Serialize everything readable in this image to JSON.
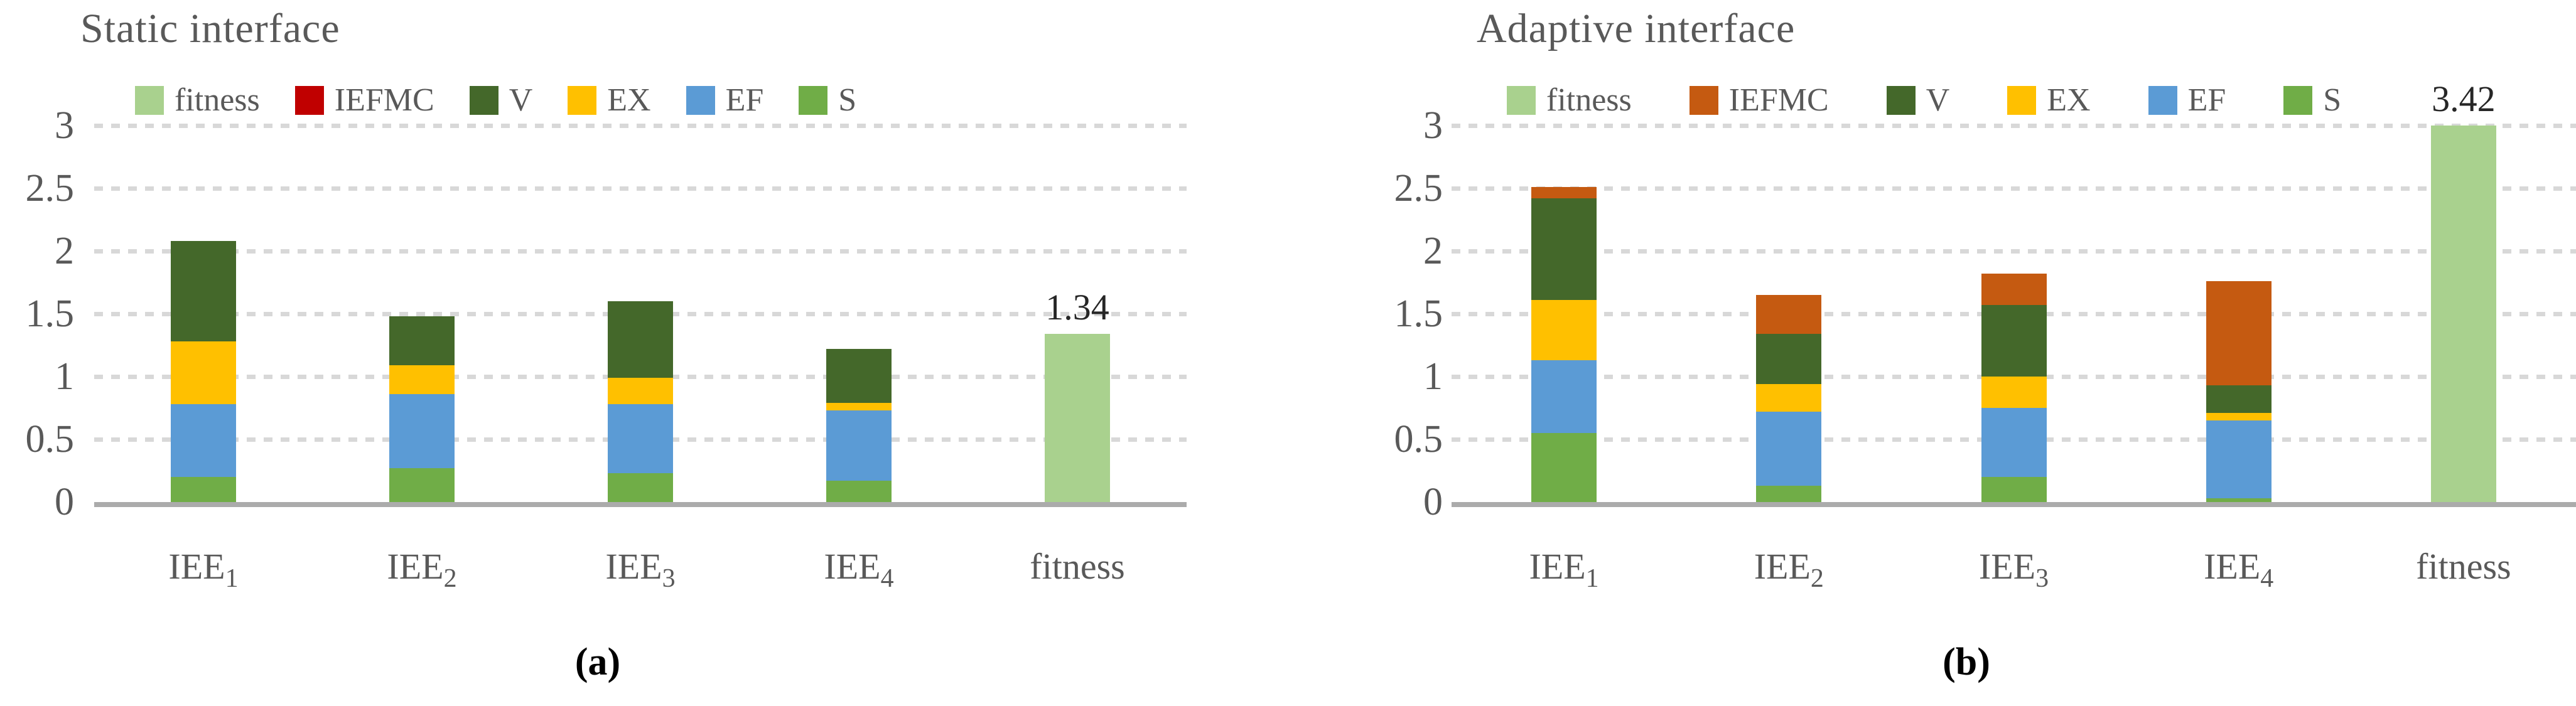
{
  "figure": {
    "background": "#FFFFFF",
    "text_color": "#595959",
    "axis_color": "#ABABAB",
    "grid_color": "#D8D8D8",
    "annotation_color": "#262626",
    "caption_color": "#000000"
  },
  "chart_data": [
    {
      "type": "bar",
      "subtype": "stacked",
      "title": "Static interface",
      "caption": "(a)",
      "legend_position": "top",
      "legend": [
        {
          "label": "fitness",
          "color": "#A9D18E"
        },
        {
          "label": "IEFMC",
          "color": "#C00000"
        },
        {
          "label": "V",
          "color": "#44682A"
        },
        {
          "label": "EX",
          "color": "#FFC000"
        },
        {
          "label": "EF",
          "color": "#5B9BD5"
        },
        {
          "label": "S",
          "color": "#70AD47"
        }
      ],
      "categories": [
        "IEE1",
        "IEE2",
        "IEE3",
        "IEE4",
        "fitness"
      ],
      "category_labels": [
        {
          "base": "IEE",
          "sub": "1"
        },
        {
          "base": "IEE",
          "sub": "2"
        },
        {
          "base": "IEE",
          "sub": "3"
        },
        {
          "base": "IEE",
          "sub": "4"
        },
        {
          "base": "fitness",
          "sub": ""
        }
      ],
      "series": [
        {
          "name": "S",
          "color": "#70AD47",
          "values": [
            0.2,
            0.27,
            0.23,
            0.17,
            0
          ]
        },
        {
          "name": "EF",
          "color": "#5B9BD5",
          "values": [
            0.58,
            0.59,
            0.55,
            0.56,
            0
          ]
        },
        {
          "name": "EX",
          "color": "#FFC000",
          "values": [
            0.5,
            0.23,
            0.21,
            0.06,
            0
          ]
        },
        {
          "name": "V",
          "color": "#44682A",
          "values": [
            0.8,
            0.39,
            0.61,
            0.43,
            0
          ]
        },
        {
          "name": "IEFMC",
          "color": "#C00000",
          "values": [
            0,
            0,
            0,
            0,
            0
          ]
        },
        {
          "name": "fitness",
          "color": "#A9D18E",
          "values": [
            0,
            0,
            0,
            0,
            1.34
          ]
        }
      ],
      "annotations": [
        {
          "category": "fitness",
          "category_index": 4,
          "text": "1.34",
          "value": 1.34
        }
      ],
      "ylim": [
        0,
        3
      ],
      "yticks": [
        3,
        2.5,
        2,
        1.5,
        1,
        0.5,
        0
      ],
      "ytick_labels": [
        "3",
        "2.5",
        "2",
        "1.5",
        "1",
        "0.5",
        "0"
      ],
      "grid": "dashed-horizontal"
    },
    {
      "type": "bar",
      "subtype": "stacked",
      "title": "Adaptive interface",
      "caption": "(b)",
      "legend_position": "top",
      "legend": [
        {
          "label": "fitness",
          "color": "#A9D18E"
        },
        {
          "label": "IEFMC",
          "color": "#C55A11"
        },
        {
          "label": "V",
          "color": "#44682A"
        },
        {
          "label": "EX",
          "color": "#FFC000"
        },
        {
          "label": "EF",
          "color": "#5B9BD5"
        },
        {
          "label": "S",
          "color": "#70AD47"
        }
      ],
      "categories": [
        "IEE1",
        "IEE2",
        "IEE3",
        "IEE4",
        "fitness"
      ],
      "category_labels": [
        {
          "base": "IEE",
          "sub": "1"
        },
        {
          "base": "IEE",
          "sub": "2"
        },
        {
          "base": "IEE",
          "sub": "3"
        },
        {
          "base": "IEE",
          "sub": "4"
        },
        {
          "base": "fitness",
          "sub": ""
        }
      ],
      "series": [
        {
          "name": "S",
          "color": "#70AD47",
          "values": [
            0.55,
            0.13,
            0.2,
            0.03,
            0
          ]
        },
        {
          "name": "EF",
          "color": "#5B9BD5",
          "values": [
            0.58,
            0.59,
            0.55,
            0.62,
            0
          ]
        },
        {
          "name": "EX",
          "color": "#FFC000",
          "values": [
            0.48,
            0.22,
            0.25,
            0.06,
            0
          ]
        },
        {
          "name": "V",
          "color": "#44682A",
          "values": [
            0.81,
            0.4,
            0.57,
            0.22,
            0
          ]
        },
        {
          "name": "IEFMC",
          "color": "#C55A11",
          "values": [
            0.09,
            0.31,
            0.25,
            0.83,
            0
          ]
        },
        {
          "name": "fitness",
          "color": "#A9D18E",
          "values": [
            0,
            0,
            0,
            0,
            3.42
          ]
        }
      ],
      "annotations": [
        {
          "category": "fitness",
          "category_index": 4,
          "text": "3.42",
          "value": 3.42
        }
      ],
      "ylim": [
        0,
        3
      ],
      "yticks": [
        3,
        2.5,
        2,
        1.5,
        1,
        0.5,
        0
      ],
      "ytick_labels": [
        "3",
        "2.5",
        "2",
        "1.5",
        "1",
        "0.5",
        "0"
      ],
      "grid": "dashed-horizontal"
    }
  ]
}
